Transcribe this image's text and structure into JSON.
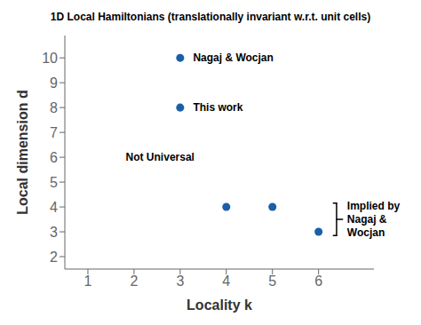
{
  "chart_data": {
    "type": "scatter",
    "title": "1D Local Hamiltonians (translationally invariant w.r.t. unit cells)",
    "x_label": "Locality  k",
    "y_label": "Local dimension  d",
    "x": [
      3,
      3,
      4,
      5,
      6
    ],
    "values": [
      10,
      8,
      4,
      4,
      3
    ],
    "color": "#1a5fa8",
    "xlim": [
      0.5,
      7.2
    ],
    "ylim": [
      1.5,
      10.9
    ],
    "xticks": [
      1,
      2,
      3,
      4,
      5,
      6
    ],
    "yticks": [
      2,
      3,
      4,
      5,
      6,
      7,
      8,
      9,
      10
    ],
    "grid": false,
    "annotations": [
      {
        "text": "Nagaj & Wocjan",
        "x": 3.28,
        "y": 10.0
      },
      {
        "text": "This work",
        "x": 3.28,
        "y": 8.0
      },
      {
        "text": "Not Universal",
        "x": 1.82,
        "y": 6.0
      },
      {
        "text": "Implied by\nNagaj &\nWocjan",
        "x": 6.62,
        "y": 3.5
      }
    ],
    "bracket": {
      "x": 6.32,
      "y": [
        2.85,
        4.15
      ]
    }
  }
}
